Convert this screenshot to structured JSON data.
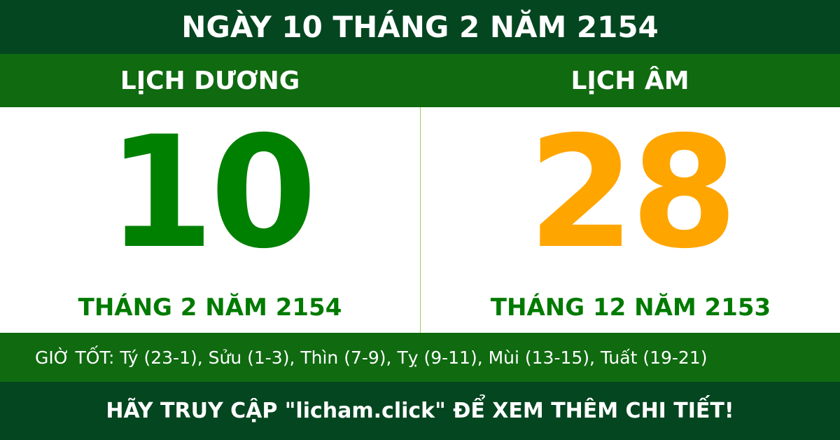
{
  "title": "NGÀY 10 THÁNG 2 NĂM 2154",
  "solar": {
    "heading": "LỊCH DƯƠNG",
    "day": "10",
    "month_year": "THÁNG 2 NĂM 2154",
    "color": "#008000"
  },
  "lunar": {
    "heading": "LỊCH ÂM",
    "day": "28",
    "month_year": "THÁNG 12 NĂM 2153",
    "color": "#ffa500"
  },
  "good_hours": "GIỜ TỐT: Tý (23-1), Sửu (1-3), Thìn (7-9), Tỵ (9-11), Mùi (13-15), Tuất (19-21)",
  "footer": "HÃY TRUY CẬP \"licham.click\" ĐỂ XEM THÊM CHI TIẾT!"
}
